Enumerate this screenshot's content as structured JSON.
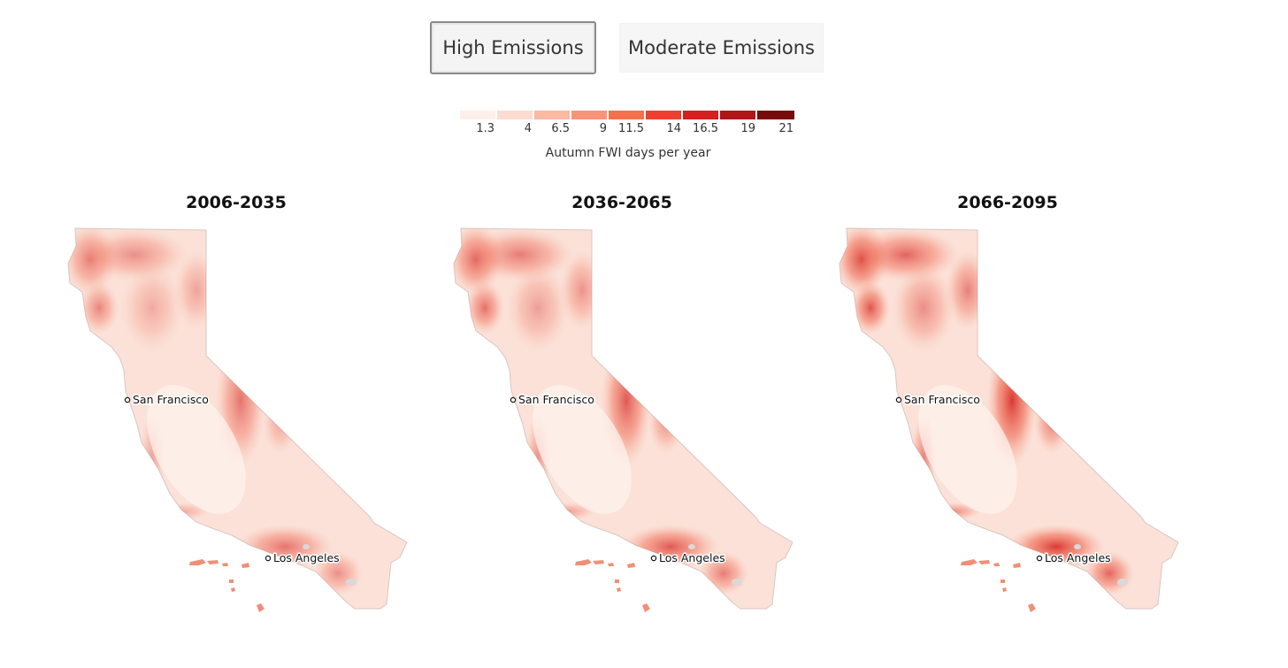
{
  "scenario_toggle": {
    "high_label": "High Emissions",
    "moderate_label": "Moderate Emissions",
    "selected": "high"
  },
  "legend": {
    "title": "Autumn FWI days per year",
    "ticks": [
      "1.3",
      "4",
      "6.5",
      "9",
      "11.5",
      "14",
      "16.5",
      "19",
      "21"
    ],
    "colors": [
      "#fdf0ea",
      "#fcdcd0",
      "#fbb8a2",
      "#fa9478",
      "#f6704f",
      "#ee3f30",
      "#d5201f",
      "#b11518",
      "#780a0d"
    ]
  },
  "maps": [
    {
      "title": "2006-2035",
      "intensity": 0.45
    },
    {
      "title": "2036-2065",
      "intensity": 0.7
    },
    {
      "title": "2066-2095",
      "intensity": 1.0
    }
  ],
  "cities": {
    "sf": "San Francisco",
    "la": "Los Angeles"
  }
}
